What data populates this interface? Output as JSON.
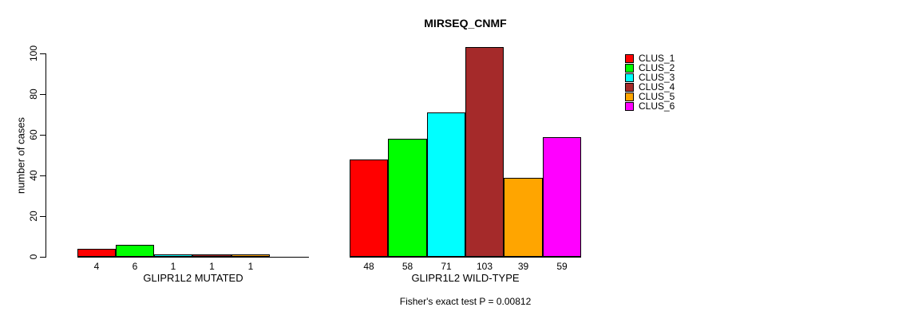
{
  "chart_data": {
    "type": "bar",
    "title": "MIRSEQ_CNMF",
    "ylabel": "number of cases",
    "ylim": [
      0,
      100
    ],
    "yticks": [
      0,
      20,
      40,
      60,
      80,
      100
    ],
    "grid": false,
    "legend_position": "right",
    "series_names": [
      "CLUS_1",
      "CLUS_2",
      "CLUS_3",
      "CLUS_4",
      "CLUS_5",
      "CLUS_6"
    ],
    "series_colors": [
      "#ff0000",
      "#00ff00",
      "#00ffff",
      "#a52a2a",
      "#ffa500",
      "#ff00ff"
    ],
    "groups": [
      {
        "label": "GLIPR1L2 MUTATED",
        "values": [
          4,
          6,
          1,
          1,
          1,
          0
        ],
        "bar_labels": [
          "4",
          "6",
          "1",
          "1",
          "1",
          ""
        ]
      },
      {
        "label": "GLIPR1L2 WILD-TYPE",
        "values": [
          48,
          58,
          71,
          103,
          39,
          59
        ],
        "bar_labels": [
          "48",
          "58",
          "71",
          "103",
          "39",
          "59"
        ]
      }
    ],
    "footer": "Fisher's exact test P = 0.00812"
  }
}
